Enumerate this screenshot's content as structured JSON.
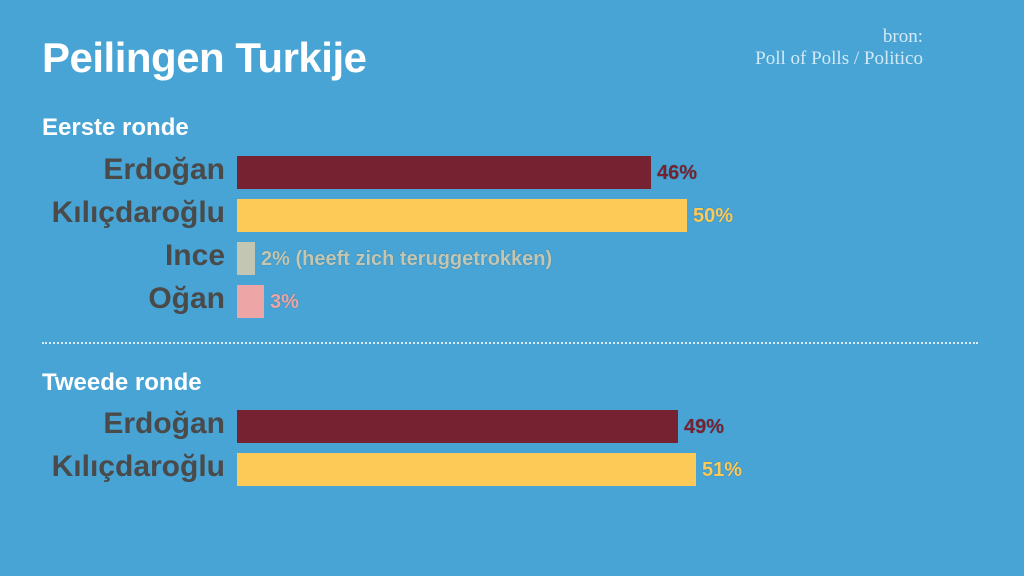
{
  "title": "Peilingen Turkije",
  "source": {
    "line1": "bron:",
    "line2": "Poll of Polls / Politico"
  },
  "colors": {
    "background": "#47a4d4",
    "erdogan": "#772231",
    "kilicdaroglu": "#fdc957",
    "ince": "#c2c6b3",
    "ogan": "#eea5a6"
  },
  "chart_data": [
    {
      "type": "bar",
      "orientation": "horizontal",
      "title": "Eerste ronde",
      "categories": [
        "Erdoğan",
        "Kılıçdaroğlu",
        "Ince",
        "Oğan"
      ],
      "values": [
        46,
        50,
        2,
        3
      ],
      "value_labels": [
        "46%",
        "50%",
        "2% (heeft zich teruggetrokken)",
        "3%"
      ],
      "colors": [
        "#772231",
        "#fdc957",
        "#c2c6b3",
        "#eea5a6"
      ]
    },
    {
      "type": "bar",
      "orientation": "horizontal",
      "title": "Tweede ronde",
      "categories": [
        "Erdoğan",
        "Kılıçdaroğlu"
      ],
      "values": [
        49,
        51
      ],
      "value_labels": [
        "49%",
        "51%"
      ],
      "colors": [
        "#772231",
        "#fdc957"
      ]
    }
  ]
}
